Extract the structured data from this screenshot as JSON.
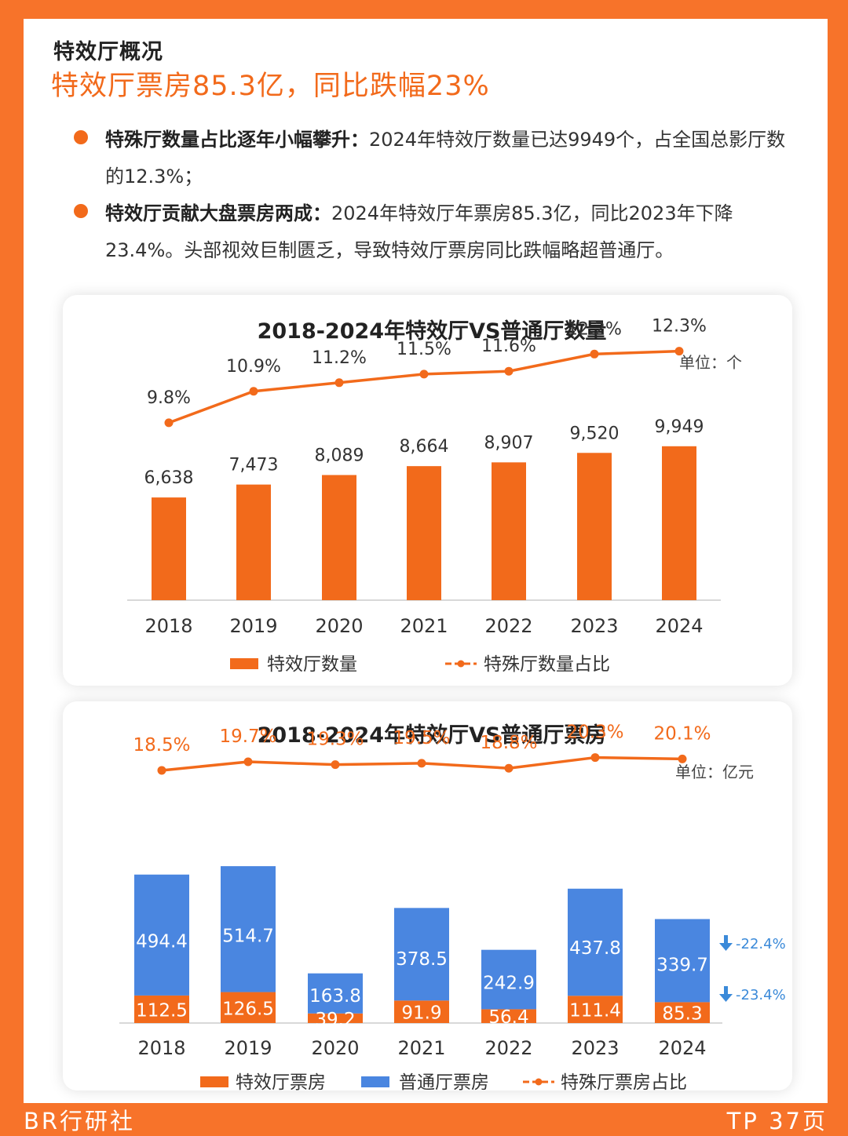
{
  "header": {
    "section_title": "特效厅概况",
    "headline": "特效厅票房85.3亿，同比跌幅23%"
  },
  "bullets": [
    {
      "label": "特殊厅数量占比逐年小幅攀升：",
      "text": "2024年特效厅数量已达9949个，占全国总影厅数的12.3%；"
    },
    {
      "label": "特效厅贡献大盘票房两成：",
      "text": "2024年特效厅年票房85.3亿，同比2023年下降23.4%。头部视效巨制匮乏，导致特效厅票房同比跌幅略超普通厅。"
    }
  ],
  "footer": {
    "left": "BR行研社",
    "right": "TP 37页"
  },
  "colors": {
    "orange": "#f26a1b",
    "blue": "#4a86e0",
    "arrow_blue": "#3b8ad9"
  },
  "chart_data": [
    {
      "type": "bar",
      "title": "2018-2024年特效厅VS普通厅数量",
      "unit": "单位：个",
      "categories": [
        "2018",
        "2019",
        "2020",
        "2021",
        "2022",
        "2023",
        "2024"
      ],
      "series": [
        {
          "name": "特效厅数量",
          "type": "bar",
          "values": [
            6638,
            7473,
            8089,
            8664,
            8907,
            9520,
            9949
          ],
          "labels": [
            "6,638",
            "7,473",
            "8,089",
            "8,664",
            "8,907",
            "9,520",
            "9,949"
          ]
        },
        {
          "name": "特殊厅数量占比",
          "type": "line",
          "values": [
            9.8,
            10.9,
            11.2,
            11.5,
            11.6,
            12.2,
            12.3
          ],
          "labels": [
            "9.8%",
            "10.9%",
            "11.2%",
            "11.5%",
            "11.6%",
            "12.2%",
            "12.3%"
          ]
        }
      ]
    },
    {
      "type": "bar",
      "stacked": true,
      "title": "2018-2024年特效厅VS普通厅票房",
      "unit": "单位：亿元",
      "categories": [
        "2018",
        "2019",
        "2020",
        "2021",
        "2022",
        "2023",
        "2024"
      ],
      "series": [
        {
          "name": "特效厅票房",
          "type": "bar",
          "values": [
            112.5,
            126.5,
            39.2,
            91.9,
            56.4,
            111.4,
            85.3
          ]
        },
        {
          "name": "普通厅票房",
          "type": "bar",
          "values": [
            494.4,
            514.7,
            163.8,
            378.5,
            242.9,
            437.8,
            339.7
          ]
        },
        {
          "name": "特殊厅票房占比",
          "type": "line",
          "values": [
            18.5,
            19.7,
            19.3,
            19.5,
            18.8,
            20.3,
            20.1
          ],
          "labels": [
            "18.5%",
            "19.7%",
            "19.3%",
            "19.5%",
            "18.8%",
            "20.3%",
            "20.1%"
          ]
        }
      ],
      "annotations": [
        {
          "series": "普通厅票房",
          "text": "-22.4%"
        },
        {
          "series": "特效厅票房",
          "text": "-23.4%"
        }
      ]
    }
  ]
}
